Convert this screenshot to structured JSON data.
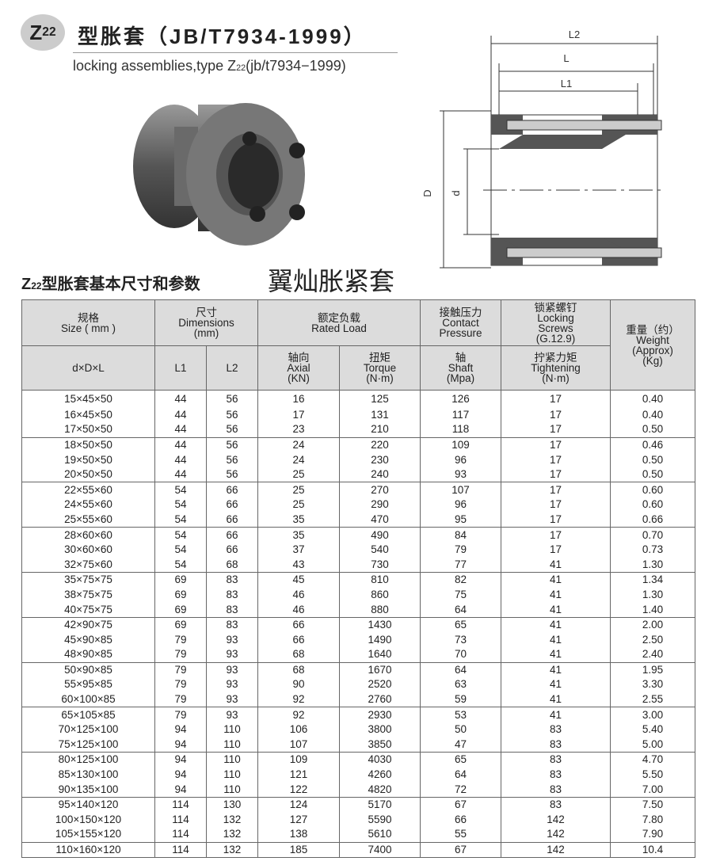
{
  "header": {
    "badge": {
      "letter": "Z",
      "sub": "22"
    },
    "title": "型胀套（JB/T7934-1999）",
    "subtitle": [
      "locking assemblies,type Z",
      "22",
      "(jb/t7934−1999)"
    ]
  },
  "drawing": {
    "labels": [
      "L2",
      "L",
      "L1",
      "D",
      "d"
    ]
  },
  "section": {
    "title": [
      "Z",
      "22",
      "型胀套基本尺寸和参数"
    ],
    "brand": "翼灿胀紧套"
  },
  "table": {
    "head1": [
      [
        "规格",
        "Size ( mm )"
      ],
      [
        "尺寸",
        "Dimensions",
        "(mm)"
      ],
      [
        "额定负载",
        "Rated Load"
      ],
      [
        "接触压力",
        "Contact",
        "Pressure"
      ],
      [
        "锁紧螺钉",
        "Locking",
        "Screws",
        "(G.12.9)"
      ],
      [
        "重量（约）",
        "Weight",
        "(Approx)",
        "(Kg)"
      ]
    ],
    "head2": [
      [
        "d×D×L"
      ],
      [
        "L1"
      ],
      [
        "L2"
      ],
      [
        "轴向",
        "Axial",
        "(KN)"
      ],
      [
        "扭矩",
        "Torque",
        "(N·m)"
      ],
      [
        "轴",
        "Shaft",
        "(Mpa)"
      ],
      [
        "拧紧力矩",
        "Tightening",
        "(N·m)"
      ]
    ],
    "rows": [
      [
        "15×45×50",
        "44",
        "56",
        "16",
        "125",
        "126",
        "17",
        "0.40"
      ],
      [
        "16×45×50",
        "44",
        "56",
        "17",
        "131",
        "117",
        "17",
        "0.40"
      ],
      [
        "17×50×50",
        "44",
        "56",
        "23",
        "210",
        "118",
        "17",
        "0.50"
      ],
      [
        "18×50×50",
        "44",
        "56",
        "24",
        "220",
        "109",
        "17",
        "0.46"
      ],
      [
        "19×50×50",
        "44",
        "56",
        "24",
        "230",
        "96",
        "17",
        "0.50"
      ],
      [
        "20×50×50",
        "44",
        "56",
        "25",
        "240",
        "93",
        "17",
        "0.50"
      ],
      [
        "22×55×60",
        "54",
        "66",
        "25",
        "270",
        "107",
        "17",
        "0.60"
      ],
      [
        "24×55×60",
        "54",
        "66",
        "25",
        "290",
        "96",
        "17",
        "0.60"
      ],
      [
        "25×55×60",
        "54",
        "66",
        "35",
        "470",
        "95",
        "17",
        "0.66"
      ],
      [
        "28×60×60",
        "54",
        "66",
        "35",
        "490",
        "84",
        "17",
        "0.70"
      ],
      [
        "30×60×60",
        "54",
        "66",
        "37",
        "540",
        "79",
        "17",
        "0.73"
      ],
      [
        "32×75×60",
        "54",
        "68",
        "43",
        "730",
        "77",
        "41",
        "1.30"
      ],
      [
        "35×75×75",
        "69",
        "83",
        "45",
        "810",
        "82",
        "41",
        "1.34"
      ],
      [
        "38×75×75",
        "69",
        "83",
        "46",
        "860",
        "75",
        "41",
        "1.30"
      ],
      [
        "40×75×75",
        "69",
        "83",
        "46",
        "880",
        "64",
        "41",
        "1.40"
      ],
      [
        "42×90×75",
        "69",
        "83",
        "66",
        "1430",
        "65",
        "41",
        "2.00"
      ],
      [
        "45×90×85",
        "79",
        "93",
        "66",
        "1490",
        "73",
        "41",
        "2.50"
      ],
      [
        "48×90×85",
        "79",
        "93",
        "68",
        "1640",
        "70",
        "41",
        "2.40"
      ],
      [
        "50×90×85",
        "79",
        "93",
        "68",
        "1670",
        "64",
        "41",
        "1.95"
      ],
      [
        "55×95×85",
        "79",
        "93",
        "90",
        "2520",
        "63",
        "41",
        "3.30"
      ],
      [
        "60×100×85",
        "79",
        "93",
        "92",
        "2760",
        "59",
        "41",
        "2.55"
      ],
      [
        "65×105×85",
        "79",
        "93",
        "92",
        "2930",
        "53",
        "41",
        "3.00"
      ],
      [
        "70×125×100",
        "94",
        "110",
        "106",
        "3800",
        "50",
        "83",
        "5.40"
      ],
      [
        "75×125×100",
        "94",
        "110",
        "107",
        "3850",
        "47",
        "83",
        "5.00"
      ],
      [
        "80×125×100",
        "94",
        "110",
        "109",
        "4030",
        "65",
        "83",
        "4.70"
      ],
      [
        "85×130×100",
        "94",
        "110",
        "121",
        "4260",
        "64",
        "83",
        "5.50"
      ],
      [
        "90×135×100",
        "94",
        "110",
        "122",
        "4820",
        "72",
        "83",
        "7.00"
      ],
      [
        "95×140×120",
        "114",
        "130",
        "124",
        "5170",
        "67",
        "83",
        "7.50"
      ],
      [
        "100×150×120",
        "114",
        "132",
        "127",
        "5590",
        "66",
        "142",
        "7.80"
      ],
      [
        "105×155×120",
        "114",
        "132",
        "138",
        "5610",
        "55",
        "142",
        "7.90"
      ],
      [
        "110×160×120",
        "114",
        "132",
        "185",
        "7400",
        "67",
        "142",
        "10.4"
      ]
    ]
  }
}
